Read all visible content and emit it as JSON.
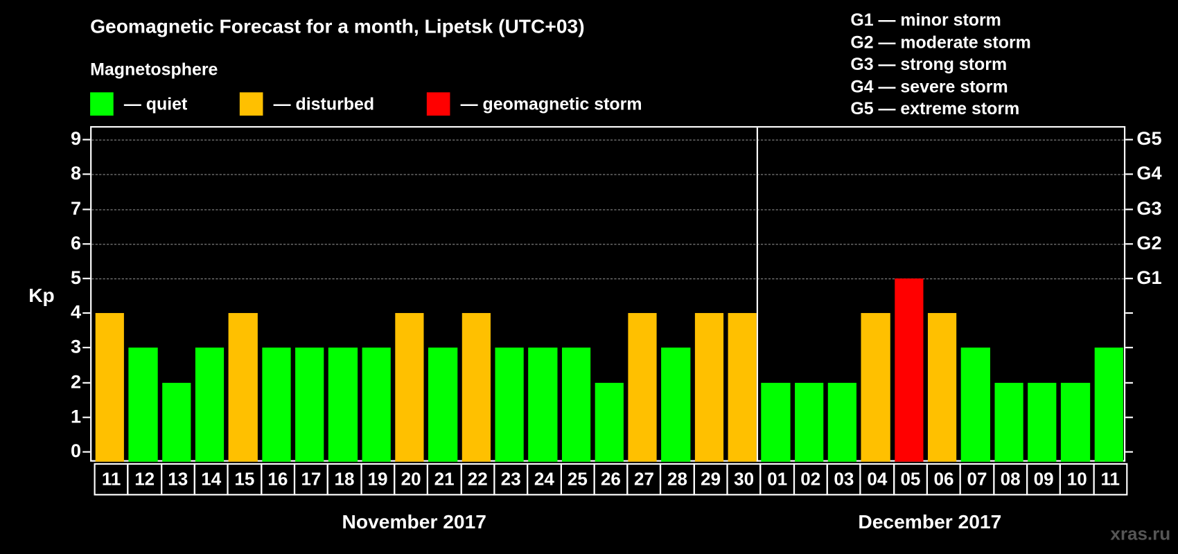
{
  "header": {
    "title": "Geomagnetic Forecast for a month, Lipetsk (UTC+03)",
    "subtitle": "Magnetosphere"
  },
  "legend": [
    {
      "label": "— quiet",
      "color": "#00ff00"
    },
    {
      "label": "— disturbed",
      "color": "#ffc000"
    },
    {
      "label": "— geomagnetic storm",
      "color": "#ff0000"
    }
  ],
  "g_scale_legend": [
    "G1 — minor storm",
    "G2 — moderate storm",
    "G3 — strong storm",
    "G4 — severe storm",
    "G5 — extreme storm"
  ],
  "axis": {
    "ylabel": "Kp",
    "yticks": [
      "0",
      "1",
      "2",
      "3",
      "4",
      "5",
      "6",
      "7",
      "8",
      "9"
    ],
    "right_labels": [
      {
        "value": 5,
        "label": "G1"
      },
      {
        "value": 6,
        "label": "G2"
      },
      {
        "value": 7,
        "label": "G3"
      },
      {
        "value": 8,
        "label": "G4"
      },
      {
        "value": 9,
        "label": "G5"
      }
    ]
  },
  "months": [
    "November 2017",
    "December 2017"
  ],
  "watermark": "xras.ru",
  "colors": {
    "quiet": "#00ff00",
    "disturbed": "#ffc000",
    "storm": "#ff0000",
    "background": "#000000",
    "grid": "#8a8a8a"
  },
  "chart_data": {
    "type": "bar",
    "title": "Geomagnetic Forecast for a month, Lipetsk (UTC+03)",
    "xlabel": "",
    "ylabel": "Kp",
    "ylim": [
      0,
      9
    ],
    "grid": true,
    "legend_position": "top",
    "categories": [
      "11",
      "12",
      "13",
      "14",
      "15",
      "16",
      "17",
      "18",
      "19",
      "20",
      "21",
      "22",
      "23",
      "24",
      "25",
      "26",
      "27",
      "28",
      "29",
      "30",
      "01",
      "02",
      "03",
      "04",
      "05",
      "06",
      "07",
      "08",
      "09",
      "10",
      "11"
    ],
    "month_groups": [
      {
        "label": "November 2017",
        "start": 0,
        "count": 20
      },
      {
        "label": "December 2017",
        "start": 20,
        "count": 11
      }
    ],
    "values": [
      4,
      3,
      2,
      3,
      4,
      3,
      3,
      3,
      3,
      4,
      3,
      4,
      3,
      3,
      3,
      2,
      4,
      3,
      4,
      4,
      2,
      2,
      2,
      4,
      5,
      4,
      3,
      2,
      2,
      2,
      3
    ],
    "status": [
      "disturbed",
      "quiet",
      "quiet",
      "quiet",
      "disturbed",
      "quiet",
      "quiet",
      "quiet",
      "quiet",
      "disturbed",
      "quiet",
      "disturbed",
      "quiet",
      "quiet",
      "quiet",
      "quiet",
      "disturbed",
      "quiet",
      "disturbed",
      "disturbed",
      "quiet",
      "quiet",
      "quiet",
      "disturbed",
      "storm",
      "disturbed",
      "quiet",
      "quiet",
      "quiet",
      "quiet",
      "quiet"
    ],
    "secondary_axis": {
      "5": "G1",
      "6": "G2",
      "7": "G3",
      "8": "G4",
      "9": "G5"
    }
  }
}
